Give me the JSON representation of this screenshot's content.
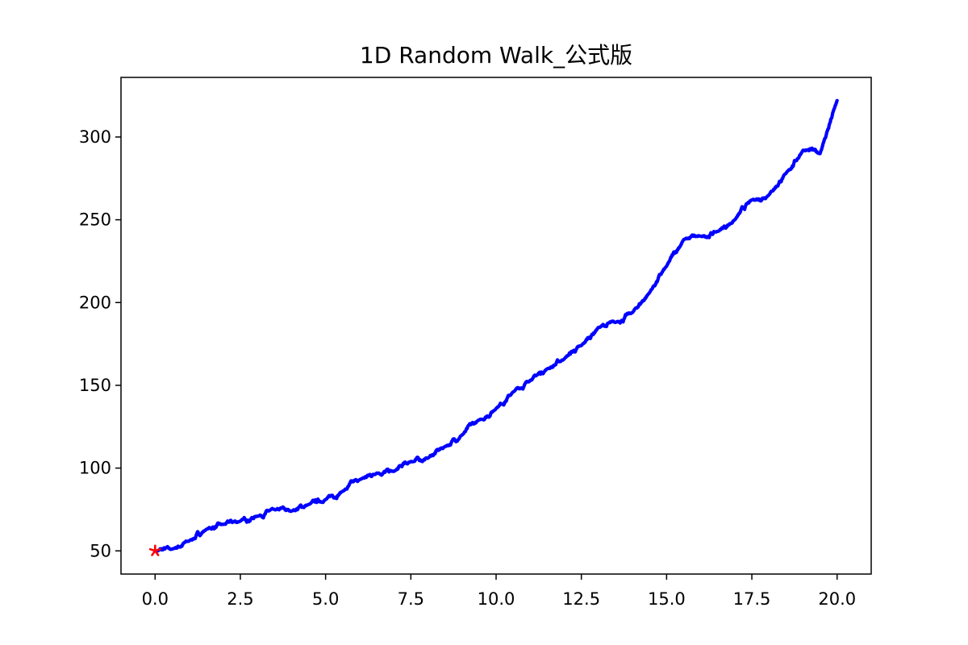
{
  "chart_data": {
    "type": "line",
    "title": "1D Random Walk_公式版",
    "xlabel": "",
    "ylabel": "",
    "xlim": [
      -1,
      21
    ],
    "ylim": [
      36,
      336
    ],
    "x_ticks": [
      0,
      2.5,
      5,
      7.5,
      10,
      12.5,
      15,
      17.5,
      20
    ],
    "x_tick_labels": [
      "0.0",
      "2.5",
      "5.0",
      "7.5",
      "10.0",
      "12.5",
      "15.0",
      "17.5",
      "20.0"
    ],
    "y_ticks": [
      50,
      100,
      150,
      200,
      250,
      300
    ],
    "y_tick_labels": [
      "50",
      "100",
      "150",
      "200",
      "250",
      "300"
    ],
    "grid": false,
    "series": [
      {
        "color": "#0000ff",
        "x": [
          0,
          0.5,
          1.0,
          1.5,
          2.0,
          2.5,
          3.0,
          3.5,
          4.0,
          4.5,
          5.0,
          5.5,
          6.0,
          6.5,
          7.0,
          7.5,
          8.0,
          8.5,
          9.0,
          9.5,
          10.0,
          10.5,
          11.0,
          11.5,
          12.0,
          12.5,
          13.0,
          13.5,
          14.0,
          14.5,
          15.0,
          15.5,
          16.0,
          16.5,
          17.0,
          17.5,
          18.0,
          18.5,
          19.0,
          19.5,
          20.0
        ],
        "y": [
          50,
          51,
          56,
          63,
          66,
          68,
          71,
          75,
          74,
          78,
          81,
          86,
          93,
          97,
          98,
          104,
          106,
          113,
          120,
          129,
          136,
          146,
          153,
          160,
          166,
          174,
          185,
          188,
          194,
          206,
          222,
          238,
          240,
          243,
          250,
          262,
          265,
          278,
          292,
          290,
          322
        ]
      }
    ],
    "start_marker": {
      "x": 0,
      "y": 50,
      "color": "#ff0000",
      "symbol": "*"
    }
  }
}
